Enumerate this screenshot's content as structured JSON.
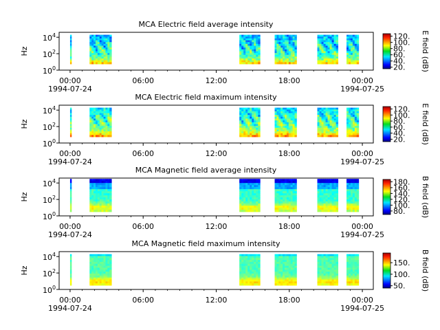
{
  "chart_data": [
    {
      "type": "heatmap",
      "title": "MCA  Electric field average intensity",
      "ylabel": "Hz",
      "y_ticks": [
        "0",
        "2",
        "4"
      ],
      "ylim_log10": [
        0,
        4.6
      ],
      "x_ticks": [
        "00:00",
        "06:00",
        "12:00",
        "18:00",
        "00:00"
      ],
      "x_tick_hours": [
        0,
        6,
        12,
        18,
        24
      ],
      "x_date_labels": [
        "1994-07-24",
        "1994-07-25"
      ],
      "xlim_hours": [
        -0.9,
        24.9
      ],
      "colorbar_label": "E field (dB)",
      "colorbar_ticks": [
        "20.",
        "40.",
        "60.",
        "80.",
        "100.",
        "120."
      ],
      "colorbar_tick_values": [
        20,
        40,
        60,
        80,
        100,
        120
      ],
      "clim": [
        15,
        128
      ],
      "coverage_hours": [
        [
          0,
          0.1
        ],
        [
          1.6,
          3.4
        ],
        [
          13.9,
          15.6
        ],
        [
          16.8,
          18.6
        ],
        [
          20.3,
          22.0
        ],
        [
          22.7,
          23.7
        ]
      ]
    },
    {
      "type": "heatmap",
      "title": "MCA  Electric field maximum intensity",
      "ylabel": "Hz",
      "y_ticks": [
        "0",
        "2",
        "4"
      ],
      "ylim_log10": [
        0,
        4.6
      ],
      "x_ticks": [
        "00:00",
        "06:00",
        "12:00",
        "18:00",
        "00:00"
      ],
      "x_tick_hours": [
        0,
        6,
        12,
        18,
        24
      ],
      "x_date_labels": [
        "1994-07-24",
        "1994-07-25"
      ],
      "xlim_hours": [
        -0.9,
        24.9
      ],
      "colorbar_label": "E field (dB)",
      "colorbar_ticks": [
        "20.",
        "40.",
        "60.",
        "80.",
        "100.",
        "120."
      ],
      "colorbar_tick_values": [
        20,
        40,
        60,
        80,
        100,
        120
      ],
      "clim": [
        12,
        128
      ],
      "coverage_hours": [
        [
          0,
          0.1
        ],
        [
          1.6,
          3.4
        ],
        [
          13.9,
          15.6
        ],
        [
          16.8,
          18.6
        ],
        [
          20.3,
          22.0
        ],
        [
          22.7,
          23.7
        ]
      ]
    },
    {
      "type": "heatmap",
      "title": "MCA  Magnetic field average intensity",
      "ylabel": "Hz",
      "y_ticks": [
        "0",
        "2",
        "4"
      ],
      "ylim_log10": [
        0,
        4.6
      ],
      "x_ticks": [
        "00:00",
        "06:00",
        "12:00",
        "18:00",
        "00:00"
      ],
      "x_tick_hours": [
        0,
        6,
        12,
        18,
        24
      ],
      "x_date_labels": [
        "1994-07-24",
        "1994-07-25"
      ],
      "xlim_hours": [
        -0.9,
        24.9
      ],
      "colorbar_label": "B field (dB)",
      "colorbar_ticks": [
        "80.",
        "100.",
        "120.",
        "140.",
        "160.",
        "180."
      ],
      "colorbar_tick_values": [
        80,
        100,
        120,
        140,
        160,
        180
      ],
      "clim": [
        68,
        188
      ],
      "coverage_hours": [
        [
          0,
          0.1
        ],
        [
          1.6,
          3.4
        ],
        [
          13.9,
          15.6
        ],
        [
          16.8,
          18.6
        ],
        [
          20.3,
          22.0
        ],
        [
          22.7,
          23.7
        ]
      ]
    },
    {
      "type": "heatmap",
      "title": "MCA  Magnetic field maximum intensity",
      "ylabel": "Hz",
      "y_ticks": [
        "0",
        "2",
        "4"
      ],
      "ylim_log10": [
        0,
        4.6
      ],
      "x_ticks": [
        "00:00",
        "06:00",
        "12:00",
        "18:00",
        "00:00"
      ],
      "x_tick_hours": [
        0,
        6,
        12,
        18,
        24
      ],
      "x_date_labels": [
        "1994-07-24",
        "1994-07-25"
      ],
      "xlim_hours": [
        -0.9,
        24.9
      ],
      "colorbar_label": "B field (dB)",
      "colorbar_ticks": [
        "50.",
        "100.",
        "150."
      ],
      "colorbar_tick_values": [
        50,
        100,
        150
      ],
      "clim": [
        40,
        192
      ],
      "coverage_hours": [
        [
          0,
          0.1
        ],
        [
          1.6,
          3.4
        ],
        [
          13.9,
          15.6
        ],
        [
          16.8,
          18.6
        ],
        [
          20.3,
          22.0
        ],
        [
          22.7,
          23.7
        ]
      ]
    }
  ]
}
